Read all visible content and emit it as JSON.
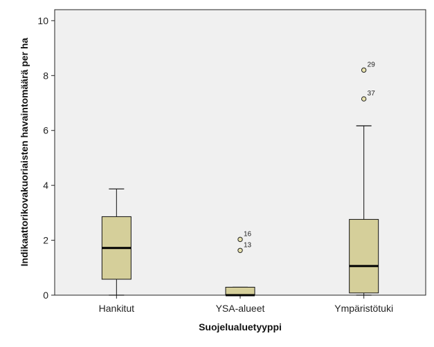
{
  "chart_data": {
    "type": "boxplot",
    "xlabel": "Suojelualuetyyppi",
    "ylabel": "Indikaattorikovakuoriaisten havaintomäärä per ha",
    "ylim": [
      0,
      10.4
    ],
    "yticks": [
      0,
      2,
      4,
      6,
      8,
      10
    ],
    "grid": false,
    "legend": "none",
    "colors": {
      "box_fill": "#d5cf9a",
      "plot_bg": "#f0f0f0",
      "outlier_fill": "#e8e2ad"
    },
    "categories": [
      "Hankitut",
      "YSA-alueet",
      "Ympäristötuki"
    ],
    "boxes": [
      {
        "category": "Hankitut",
        "whisker_low": 0.0,
        "q1": 0.58,
        "median": 1.72,
        "q3": 2.86,
        "whisker_high": 3.87,
        "outliers": []
      },
      {
        "category": "YSA-alueet",
        "whisker_low": 0.0,
        "q1": 0.0,
        "median": 0.0,
        "q3": 0.29,
        "whisker_high": 0.29,
        "outliers": [
          {
            "value": 2.03,
            "label": "16"
          },
          {
            "value": 1.63,
            "label": "13"
          }
        ]
      },
      {
        "category": "Ympäristötuki",
        "whisker_low": 0.0,
        "q1": 0.08,
        "median": 1.06,
        "q3": 2.76,
        "whisker_high": 6.17,
        "outliers": [
          {
            "value": 8.2,
            "label": "29"
          },
          {
            "value": 7.15,
            "label": "37"
          }
        ]
      }
    ]
  }
}
